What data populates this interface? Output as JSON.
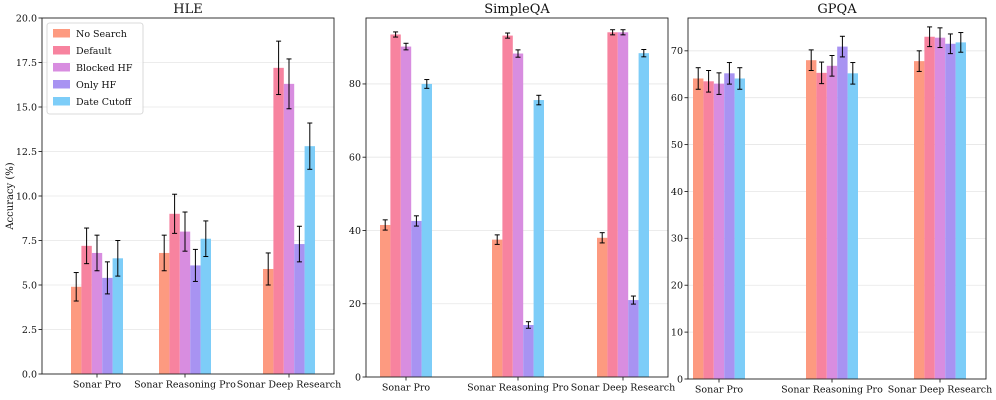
{
  "colors": {
    "No Search": "#fd9a80",
    "Default": "#f7839f",
    "Blocked HF": "#d88de0",
    "Only HF": "#a893f2",
    "Date Cutoff": "#7dcdf8"
  },
  "chart_data": [
    {
      "type": "bar",
      "title": "HLE",
      "xlabel": "",
      "ylabel": "Accuracy (%)",
      "ylim": [
        0,
        20
      ],
      "yticks": [
        "0.0",
        "2.5",
        "5.0",
        "7.5",
        "10.0",
        "12.5",
        "15.0",
        "17.5",
        "20.0"
      ],
      "grid": true,
      "legend": "top-left",
      "categories": [
        "Sonar Pro",
        "Sonar Reasoning Pro",
        "Sonar Deep Research"
      ],
      "series": [
        {
          "name": "No Search",
          "values": [
            4.9,
            6.8,
            5.9
          ],
          "errors": [
            0.8,
            1.0,
            0.9
          ]
        },
        {
          "name": "Default",
          "values": [
            7.2,
            9.0,
            17.2
          ],
          "errors": [
            1.0,
            1.1,
            1.5
          ]
        },
        {
          "name": "Blocked HF",
          "values": [
            6.8,
            8.0,
            16.3
          ],
          "errors": [
            1.0,
            1.1,
            1.4
          ]
        },
        {
          "name": "Only HF",
          "values": [
            5.4,
            6.1,
            7.3
          ],
          "errors": [
            0.9,
            0.9,
            1.0
          ]
        },
        {
          "name": "Date Cutoff",
          "values": [
            6.5,
            7.6,
            12.8
          ],
          "errors": [
            1.0,
            1.0,
            1.3
          ]
        }
      ]
    },
    {
      "type": "bar",
      "title": "SimpleQA",
      "xlabel": "",
      "ylabel": "",
      "ylim": [
        0,
        98
      ],
      "yticks": [
        "0",
        "20",
        "40",
        "60",
        "80"
      ],
      "grid": true,
      "legend": "none",
      "categories": [
        "Sonar Pro",
        "Sonar Reasoning Pro",
        "Sonar Deep Research"
      ],
      "series": [
        {
          "name": "No Search",
          "values": [
            41.5,
            37.5,
            38.0
          ],
          "errors": [
            1.4,
            1.3,
            1.4
          ]
        },
        {
          "name": "Default",
          "values": [
            93.5,
            93.2,
            94.1
          ],
          "errors": [
            0.7,
            0.7,
            0.7
          ]
        },
        {
          "name": "Blocked HF",
          "values": [
            90.2,
            88.3,
            94.1
          ],
          "errors": [
            0.9,
            1.0,
            0.7
          ]
        },
        {
          "name": "Only HF",
          "values": [
            42.6,
            14.2,
            21.0
          ],
          "errors": [
            1.4,
            0.9,
            1.1
          ]
        },
        {
          "name": "Date Cutoff",
          "values": [
            80.0,
            75.6,
            88.4
          ],
          "errors": [
            1.2,
            1.3,
            1.0
          ]
        }
      ]
    },
    {
      "type": "bar",
      "title": "GPQA",
      "xlabel": "",
      "ylabel": "",
      "ylim": [
        0,
        77
      ],
      "yticks": [
        "0",
        "10",
        "20",
        "30",
        "40",
        "50",
        "60",
        "70"
      ],
      "grid": true,
      "legend": "none",
      "categories": [
        "Sonar Pro",
        "Sonar Reasoning Pro",
        "Sonar Deep Research"
      ],
      "series": [
        {
          "name": "No Search",
          "values": [
            64.1,
            68.0,
            67.8
          ],
          "errors": [
            2.3,
            2.2,
            2.2
          ]
        },
        {
          "name": "Default",
          "values": [
            63.5,
            65.3,
            73.0
          ],
          "errors": [
            2.3,
            2.3,
            2.1
          ]
        },
        {
          "name": "Blocked HF",
          "values": [
            63.0,
            66.8,
            72.8
          ],
          "errors": [
            2.3,
            2.2,
            2.1
          ]
        },
        {
          "name": "Only HF",
          "values": [
            65.2,
            70.9,
            71.5
          ],
          "errors": [
            2.3,
            2.2,
            2.1
          ]
        },
        {
          "name": "Date Cutoff",
          "values": [
            64.1,
            65.2,
            71.8
          ],
          "errors": [
            2.3,
            2.3,
            2.1
          ]
        }
      ]
    }
  ]
}
